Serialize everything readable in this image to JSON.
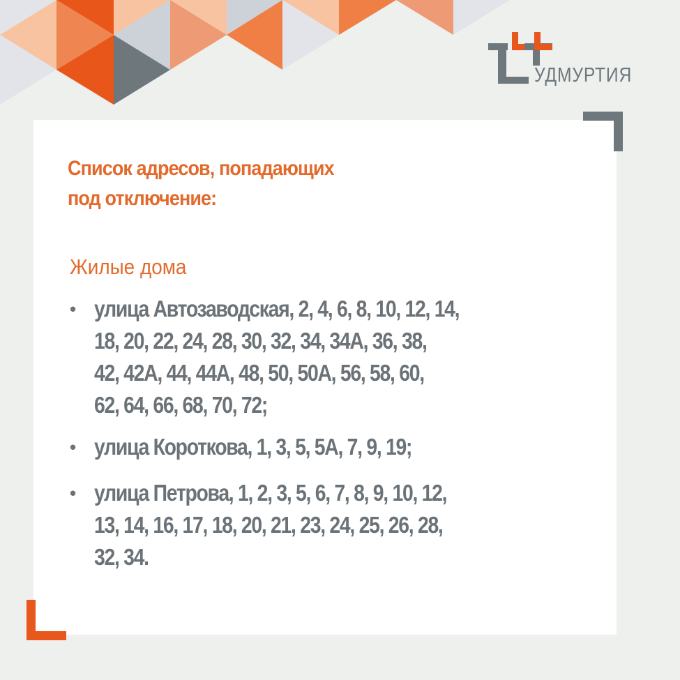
{
  "logo": {
    "text": "УДМУРТИЯ",
    "brand_orange": "#e8581c",
    "brand_gray": "#6d777c"
  },
  "title": {
    "lines": [
      "Список адресов, попадающих",
      "под отключение:"
    ]
  },
  "subheading": "Жилые дома",
  "addresses": [
    {
      "lines": [
        "улица Автозаводская, 2, 4, 6, 8, 10, 12, 14,",
        "18, 20, 22, 24, 28, 30, 32, 34, 34А, 36, 38,",
        "42, 42А, 44, 44А, 48, 50, 50А, 56, 58, 60,",
        "62, 64, 66, 68, 70, 72;"
      ]
    },
    {
      "lines": [
        "улица Короткова, 1, 3, 5, 5А, 7, 9, 19;"
      ]
    },
    {
      "lines": [
        "улица Петрова, 1, 2, 3, 5, 6, 7, 8, 9, 10, 12,",
        "13, 14, 16, 17, 18, 20, 21, 23, 24, 25, 26, 28,",
        "32, 34."
      ]
    }
  ],
  "bullet": "•"
}
